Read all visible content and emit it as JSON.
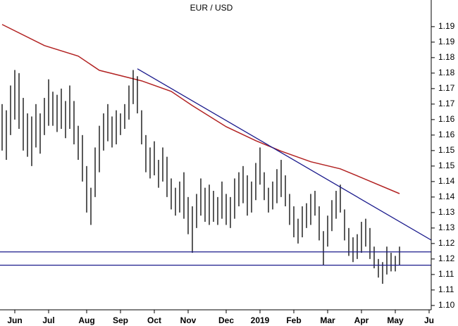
{
  "chart_data": {
    "type": "ohlc",
    "title": "EUR / USD",
    "xlim": [
      -0.5,
      101.5
    ],
    "ylim": [
      1.1036,
      1.2036
    ],
    "xticks": [
      {
        "value": 3,
        "label": "Jun"
      },
      {
        "value": 11,
        "label": "Jul"
      },
      {
        "value": 20,
        "label": "Aug"
      },
      {
        "value": 28,
        "label": "Sep"
      },
      {
        "value": 36,
        "label": "Oct"
      },
      {
        "value": 44,
        "label": "Nov"
      },
      {
        "value": 53,
        "label": "Dec"
      },
      {
        "value": 61,
        "label": "2019"
      },
      {
        "value": 69,
        "label": "Feb"
      },
      {
        "value": 77,
        "label": "Mar"
      },
      {
        "value": 85,
        "label": "Apr"
      },
      {
        "value": 93,
        "label": "May"
      },
      {
        "value": 101,
        "label": "Ju"
      }
    ],
    "yticks": [
      {
        "value": 1.195,
        "label": "1.19"
      },
      1.19,
      {
        "value": 1.185,
        "label": "1.18"
      },
      1.18,
      {
        "value": 1.175,
        "label": "1.17"
      },
      1.17,
      {
        "value": 1.165,
        "label": "1.16"
      },
      1.16,
      {
        "value": 1.155,
        "label": "1.15"
      },
      1.15,
      {
        "value": 1.145,
        "label": "1.14"
      },
      1.14,
      {
        "value": 1.135,
        "label": "1.13"
      },
      1.13,
      {
        "value": 1.125,
        "label": "1.12"
      },
      1.12,
      {
        "value": 1.115,
        "label": "1.11"
      },
      1.11,
      {
        "value": 1.105,
        "label": "1.10"
      }
    ],
    "bars": {
      "color": "#000000",
      "high": [
        1.17,
        1.168,
        1.176,
        1.181,
        1.18,
        1.172,
        1.167,
        1.166,
        1.17,
        1.167,
        1.172,
        1.178,
        1.174,
        1.173,
        1.175,
        1.171,
        1.176,
        1.171,
        1.163,
        1.16,
        1.15,
        1.143,
        1.156,
        1.163,
        1.167,
        1.17,
        1.166,
        1.168,
        1.167,
        1.17,
        1.176,
        1.181,
        1.179,
        1.168,
        1.16,
        1.156,
        1.158,
        1.152,
        1.156,
        1.153,
        1.146,
        1.143,
        1.145,
        1.148,
        1.14,
        1.137,
        1.141,
        1.146,
        1.143,
        1.144,
        1.142,
        1.14,
        1.145,
        1.141,
        1.14,
        1.146,
        1.148,
        1.15,
        1.147,
        1.145,
        1.151,
        1.156,
        1.148,
        1.143,
        1.145,
        1.149,
        1.152,
        1.147,
        1.141,
        1.137,
        1.133,
        1.137,
        1.138,
        1.141,
        1.142,
        1.137,
        1.129,
        1.134,
        1.139,
        1.142,
        1.144,
        1.136,
        1.13,
        1.127,
        1.128,
        1.132,
        1.133,
        1.13,
        1.124,
        1.12,
        1.119,
        1.124,
        1.122,
        1.121,
        1.124
      ],
      "low": [
        1.155,
        1.152,
        1.16,
        1.165,
        1.162,
        1.155,
        1.153,
        1.15,
        1.156,
        1.154,
        1.16,
        1.163,
        1.163,
        1.161,
        1.162,
        1.159,
        1.162,
        1.157,
        1.152,
        1.145,
        1.135,
        1.131,
        1.14,
        1.148,
        1.155,
        1.158,
        1.156,
        1.157,
        1.16,
        1.162,
        1.165,
        1.17,
        1.167,
        1.157,
        1.148,
        1.146,
        1.147,
        1.143,
        1.145,
        1.14,
        1.136,
        1.134,
        1.135,
        1.133,
        1.128,
        1.122,
        1.13,
        1.134,
        1.132,
        1.131,
        1.132,
        1.131,
        1.133,
        1.131,
        1.13,
        1.133,
        1.137,
        1.138,
        1.134,
        1.135,
        1.139,
        1.144,
        1.139,
        1.135,
        1.136,
        1.138,
        1.14,
        1.137,
        1.131,
        1.127,
        1.125,
        1.127,
        1.13,
        1.131,
        1.134,
        1.126,
        1.118,
        1.124,
        1.129,
        1.133,
        1.135,
        1.126,
        1.121,
        1.119,
        1.12,
        1.122,
        1.124,
        1.12,
        1.117,
        1.114,
        1.112,
        1.115,
        1.116,
        1.116,
        1.118
      ]
    },
    "moving_average": {
      "color": "#b22222",
      "x": [
        0,
        10,
        18,
        23,
        33,
        40,
        45,
        53,
        60,
        66,
        73,
        80,
        86,
        94
      ],
      "values": [
        1.1957,
        1.1889,
        1.1855,
        1.1809,
        1.1775,
        1.1741,
        1.1695,
        1.1627,
        1.1582,
        1.1548,
        1.1514,
        1.1491,
        1.1457,
        1.1411
      ]
    },
    "lines": [
      {
        "color": "#1a1a8c",
        "x": [
          32,
          101.5
        ],
        "values": [
          1.1814,
          1.1261
        ]
      },
      {
        "color": "#1a1a8c",
        "x": [
          -0.5,
          101.5
        ],
        "values": [
          1.1223,
          1.1223
        ]
      },
      {
        "color": "#1a1a8c",
        "x": [
          -0.5,
          101.5
        ],
        "values": [
          1.118,
          1.118
        ]
      }
    ]
  }
}
